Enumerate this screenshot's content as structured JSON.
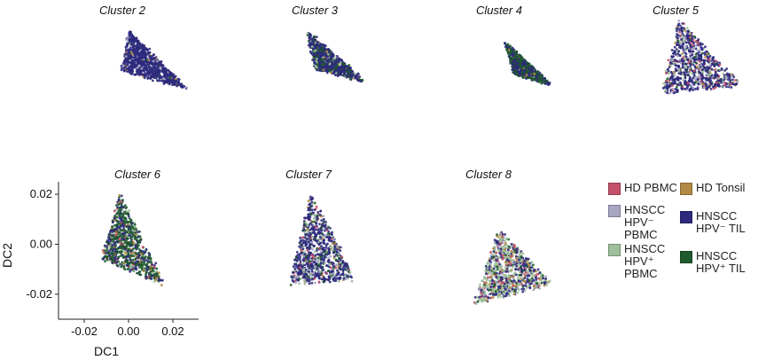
{
  "colors": {
    "hd_pbmc": "#c4506a",
    "hd_tonsil": "#b28a45",
    "hpvneg_pbmc": "#a9a6c4",
    "hpvneg_til": "#2d2a7d",
    "hpvpos_pbmc": "#9dbf9a",
    "hpvpos_til": "#1f5a2e"
  },
  "legend": {
    "items": [
      {
        "key": "hd_pbmc",
        "lines": [
          "HD PBMC"
        ]
      },
      {
        "key": "hd_tonsil",
        "lines": [
          "HD Tonsil"
        ]
      },
      {
        "key": "hpvneg_pbmc",
        "lines": [
          "HNSCC",
          "HPV⁻",
          "PBMC"
        ]
      },
      {
        "key": "hpvneg_til",
        "lines": [
          "HNSCC",
          "HPV⁻ TIL"
        ]
      },
      {
        "key": "hpvpos_pbmc",
        "lines": [
          "HNSCC",
          "HPV⁺",
          "PBMC"
        ]
      },
      {
        "key": "hpvpos_til",
        "lines": [
          "HNSCC",
          "HPV⁺ TIL"
        ]
      }
    ]
  },
  "chart_data": {
    "type": "scatter",
    "xlabel": "DC1",
    "ylabel": "DC2",
    "xlim": [
      -0.03,
      0.03
    ],
    "ylim": [
      -0.03,
      0.025
    ],
    "xticks": [
      -0.02,
      0.0,
      0.02
    ],
    "yticks": [
      -0.02,
      0.0,
      0.02
    ],
    "xtick_labels": [
      "-0.02",
      "0.00",
      "0.02"
    ],
    "ytick_labels": [
      "-0.02",
      "0.00",
      "0.02"
    ],
    "panels": [
      {
        "title": "Cluster 2",
        "shape": [
          [
            -0.008,
            0.018
          ],
          [
            0.02,
            -0.012
          ],
          [
            -0.012,
            -0.002
          ]
        ],
        "mix": {
          "hpvneg_til": 0.9,
          "hpvneg_pbmc": 0.05,
          "hd_tonsil": 0.03,
          "hpvpos_til": 0.02
        }
      },
      {
        "title": "Cluster 3",
        "shape": [
          [
            -0.01,
            0.018
          ],
          [
            0.018,
            -0.008
          ],
          [
            -0.006,
            -0.002
          ]
        ],
        "mix": {
          "hpvneg_til": 0.65,
          "hpvpos_til": 0.25,
          "hpvpos_pbmc": 0.05,
          "hd_tonsil": 0.05
        }
      },
      {
        "title": "Cluster 4",
        "shape": [
          [
            -0.004,
            0.012
          ],
          [
            0.018,
            -0.01
          ],
          [
            0.0,
            -0.004
          ]
        ],
        "mix": {
          "hpvpos_til": 0.55,
          "hpvneg_til": 0.4,
          "hd_tonsil": 0.03,
          "hpvpos_pbmc": 0.02
        }
      },
      {
        "title": "Cluster 5",
        "shape": [
          [
            -0.004,
            0.024
          ],
          [
            0.026,
            -0.01
          ],
          [
            -0.012,
            -0.014
          ]
        ],
        "mix": {
          "hpvneg_til": 0.6,
          "hpvneg_pbmc": 0.12,
          "hpvpos_pbmc": 0.1,
          "hd_pbmc": 0.08,
          "hd_tonsil": 0.05,
          "hpvpos_til": 0.05
        }
      },
      {
        "title": "Cluster 6",
        "shape": [
          [
            -0.004,
            0.02
          ],
          [
            0.016,
            -0.016
          ],
          [
            -0.012,
            -0.006
          ]
        ],
        "mix": {
          "hpvpos_til": 0.55,
          "hpvneg_til": 0.25,
          "hpvpos_pbmc": 0.08,
          "hd_pbmc": 0.06,
          "hd_tonsil": 0.06
        }
      },
      {
        "title": "Cluster 7",
        "shape": [
          [
            -0.002,
            0.02
          ],
          [
            0.02,
            -0.014
          ],
          [
            -0.012,
            -0.016
          ]
        ],
        "mix": {
          "hpvneg_til": 0.65,
          "hpvpos_pbmc": 0.1,
          "hpvneg_pbmc": 0.08,
          "hpvpos_til": 0.08,
          "hd_pbmc": 0.05,
          "hd_tonsil": 0.04
        }
      },
      {
        "title": "Cluster 8",
        "shape": [
          [
            0.0,
            0.006
          ],
          [
            0.026,
            -0.016
          ],
          [
            -0.012,
            -0.024
          ]
        ],
        "mix": {
          "hpvpos_pbmc": 0.35,
          "hpvneg_til": 0.25,
          "hd_tonsil": 0.12,
          "hd_pbmc": 0.1,
          "hpvneg_pbmc": 0.1,
          "hpvpos_til": 0.08
        }
      }
    ]
  }
}
